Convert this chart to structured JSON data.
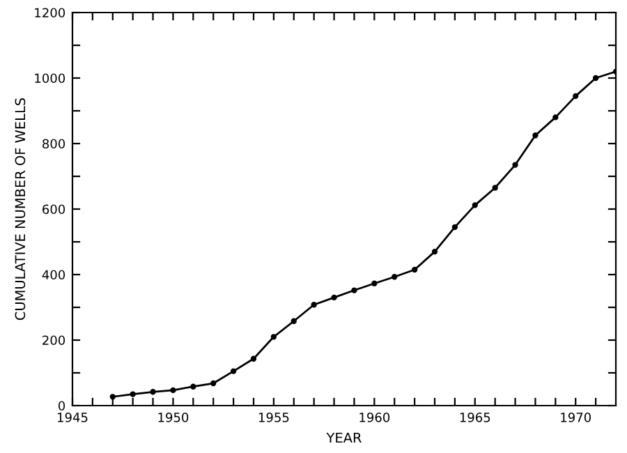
{
  "chart_data": {
    "type": "line",
    "xlabel": "YEAR",
    "ylabel": "CUMULATIVE NUMBER OF WELLS",
    "x": [
      1947,
      1948,
      1949,
      1950,
      1951,
      1952,
      1953,
      1954,
      1955,
      1956,
      1957,
      1958,
      1959,
      1960,
      1961,
      1962,
      1963,
      1964,
      1965,
      1966,
      1967,
      1968,
      1969,
      1970,
      1971,
      1972
    ],
    "series": [
      {
        "color": "#000000",
        "values": [
          27,
          35,
          42,
          47,
          58,
          68,
          105,
          143,
          210,
          258,
          308,
          330,
          352,
          373,
          393,
          415,
          470,
          545,
          612,
          665,
          735,
          825,
          880,
          945,
          1000,
          1020
        ]
      }
    ],
    "xlim": [
      1945,
      1972
    ],
    "xticks": [
      1945,
      {
        "value": 1946,
        "label": null
      },
      {
        "value": 1947,
        "label": null
      },
      {
        "value": 1948,
        "label": null
      },
      {
        "value": 1949,
        "label": null
      },
      1950,
      {
        "value": 1951,
        "label": null
      },
      {
        "value": 1952,
        "label": null
      },
      {
        "value": 1953,
        "label": null
      },
      {
        "value": 1954,
        "label": null
      },
      1955,
      {
        "value": 1956,
        "label": null
      },
      {
        "value": 1957,
        "label": null
      },
      {
        "value": 1958,
        "label": null
      },
      {
        "value": 1959,
        "label": null
      },
      1960,
      {
        "value": 1961,
        "label": null
      },
      {
        "value": 1962,
        "label": null
      },
      {
        "value": 1963,
        "label": null
      },
      {
        "value": 1964,
        "label": null
      },
      1965,
      {
        "value": 1966,
        "label": null
      },
      {
        "value": 1967,
        "label": null
      },
      {
        "value": 1968,
        "label": null
      },
      {
        "value": 1969,
        "label": null
      },
      1970,
      {
        "value": 1971,
        "label": null
      }
    ],
    "ylim": [
      0,
      1200
    ],
    "yticks": [
      0,
      {
        "value": 100,
        "label": null
      },
      200,
      {
        "value": 300,
        "label": null
      },
      400,
      {
        "value": 500,
        "label": null
      },
      600,
      {
        "value": 700,
        "label": null
      },
      800,
      {
        "value": 900,
        "label": null
      },
      1000,
      {
        "value": 1100,
        "label": null
      },
      1200
    ],
    "grid": false,
    "marker": "circle",
    "line_style": "solid"
  }
}
